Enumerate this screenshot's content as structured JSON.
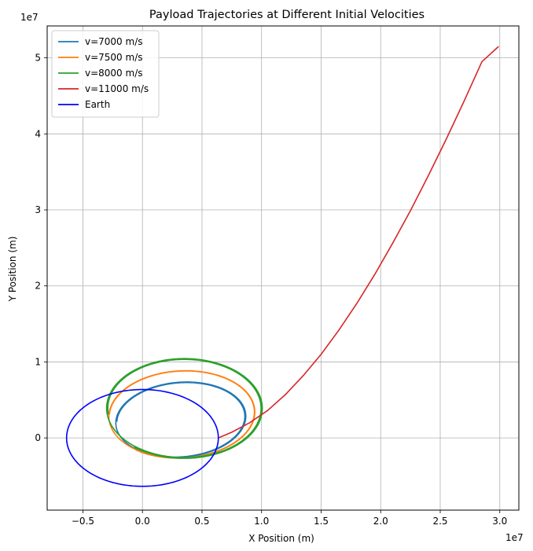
{
  "chart_data": {
    "type": "line",
    "title": "Payload Trajectories at Different Initial Velocities",
    "xlabel": "X Position (m)",
    "ylabel": "Y Position (m)",
    "x_offset_label": "1e7",
    "y_offset_label": "1e7",
    "xlim": [
      -0.8,
      3.16
    ],
    "ylim": [
      -0.95,
      5.42
    ],
    "x_ticks": [
      -0.5,
      0.0,
      0.5,
      1.0,
      1.5,
      2.0,
      2.5,
      3.0
    ],
    "x_tick_labels": [
      "−0.5",
      "0.0",
      "0.5",
      "1.0",
      "1.5",
      "2.0",
      "2.5",
      "3.0"
    ],
    "y_ticks": [
      0,
      1,
      2,
      3,
      4,
      5
    ],
    "y_tick_labels": [
      "0",
      "1",
      "2",
      "3",
      "4",
      "5"
    ],
    "grid": true,
    "legend_position": "top-left",
    "series": [
      {
        "name": "v=7000 m/s",
        "color": "#1f77b4",
        "kind": "ellipse",
        "cx": 0.32,
        "cy": 0.24,
        "a": 0.56,
        "b": 0.49,
        "rotation_deg": 22,
        "turns": 1.85,
        "drift": 0.028
      },
      {
        "name": "v=7500 m/s",
        "color": "#ff7f0e",
        "kind": "ellipse",
        "cx": 0.33,
        "cy": 0.31,
        "a": 0.62,
        "b": 0.57,
        "rotation_deg": 20,
        "turns": 1.85,
        "drift": 0.01
      },
      {
        "name": "v=8000 m/s",
        "color": "#2ca02c",
        "kind": "ellipse",
        "cx": 0.35,
        "cy": 0.39,
        "a": 0.66,
        "b": 0.66,
        "rotation_deg": 18,
        "turns": 1.88,
        "drift": 0.03
      },
      {
        "name": "v=11000 m/s",
        "color": "#d62728",
        "kind": "points",
        "x": [
          0.637,
          0.75,
          0.9,
          1.05,
          1.2,
          1.35,
          1.5,
          1.65,
          1.8,
          1.95,
          2.1,
          2.25,
          2.4,
          2.55,
          2.7,
          2.85,
          2.99
        ],
        "y": [
          0.0,
          0.075,
          0.2,
          0.36,
          0.57,
          0.82,
          1.1,
          1.42,
          1.77,
          2.15,
          2.56,
          2.99,
          3.45,
          3.93,
          4.43,
          4.95,
          5.15
        ]
      },
      {
        "name": "Earth",
        "color": "#0000ff",
        "kind": "circle",
        "cx": 0.0,
        "cy": 0.0,
        "r": 0.637
      }
    ]
  }
}
